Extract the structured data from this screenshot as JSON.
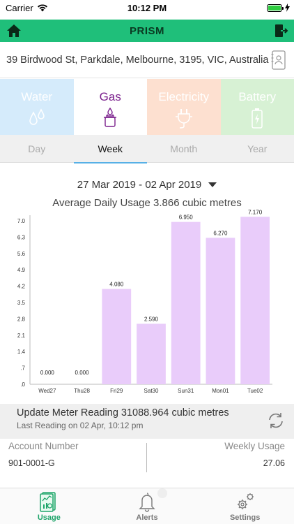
{
  "status_bar": {
    "carrier": "Carrier",
    "time": "10:12 PM"
  },
  "header": {
    "title": "PRISM",
    "home_icon": "home-icon",
    "logout_icon": "logout-icon"
  },
  "address": {
    "text": "39 Birdwood St, Parkdale, Melbourne, 3195, VIC, Australia",
    "contact_icon": "contact-card-icon"
  },
  "utility_tabs": [
    {
      "label": "Water",
      "icon": "water-drops-icon",
      "selected": false
    },
    {
      "label": "Gas",
      "icon": "gas-stove-icon",
      "selected": true
    },
    {
      "label": "Electricity",
      "icon": "plug-icon",
      "selected": false
    },
    {
      "label": "Battery",
      "icon": "battery-icon",
      "selected": false
    }
  ],
  "period_tabs": [
    {
      "label": "Day",
      "selected": false
    },
    {
      "label": "Week",
      "selected": true
    },
    {
      "label": "Month",
      "selected": false
    },
    {
      "label": "Year",
      "selected": false
    }
  ],
  "date_range": "27 Mar 2019 - 02 Apr 2019",
  "average_usage": "Average Daily Usage 3.866 cubic metres",
  "chart_data": {
    "type": "bar",
    "categories": [
      "Wed27",
      "Thu28",
      "Fri29",
      "Sat30",
      "Sun31",
      "Mon01",
      "Tue02"
    ],
    "values": [
      0.0,
      0.0,
      4.08,
      2.59,
      6.95,
      6.27,
      7.17
    ],
    "value_labels": [
      "0.000",
      "0.000",
      "4.080",
      "2.590",
      "6.950",
      "6.270",
      "7.170"
    ],
    "y_ticks": [
      ".0",
      ".7",
      "1.4",
      "2.1",
      "2.8",
      "3.5",
      "4.2",
      "4.9",
      "5.6",
      "6.3",
      "7.0"
    ],
    "ylim": [
      0,
      7.0
    ],
    "bar_color": "#e9ccfa",
    "grid": false
  },
  "meter": {
    "title": "Update Meter Reading 31088.964 cubic metres",
    "subtitle": "Last Reading on 02 Apr, 10:12 pm",
    "refresh_icon": "refresh-icon"
  },
  "account": {
    "number_label": "Account Number",
    "number_value": "901-0001-G",
    "usage_label": "Weekly Usage",
    "usage_value": "27.06"
  },
  "tab_bar": [
    {
      "label": "Usage",
      "icon": "usage-report-icon",
      "active": true
    },
    {
      "label": "Alerts",
      "icon": "bell-icon",
      "active": false
    },
    {
      "label": "Settings",
      "icon": "gears-icon",
      "active": false
    }
  ],
  "colors": {
    "header_green": "#1fbf7a",
    "gas_purple": "#7a1f8c",
    "water_tab": "#d5ebfb",
    "electricity_tab": "#fde0d0",
    "battery_tab": "#d7f1d4",
    "active_underline": "#57b0e6"
  }
}
